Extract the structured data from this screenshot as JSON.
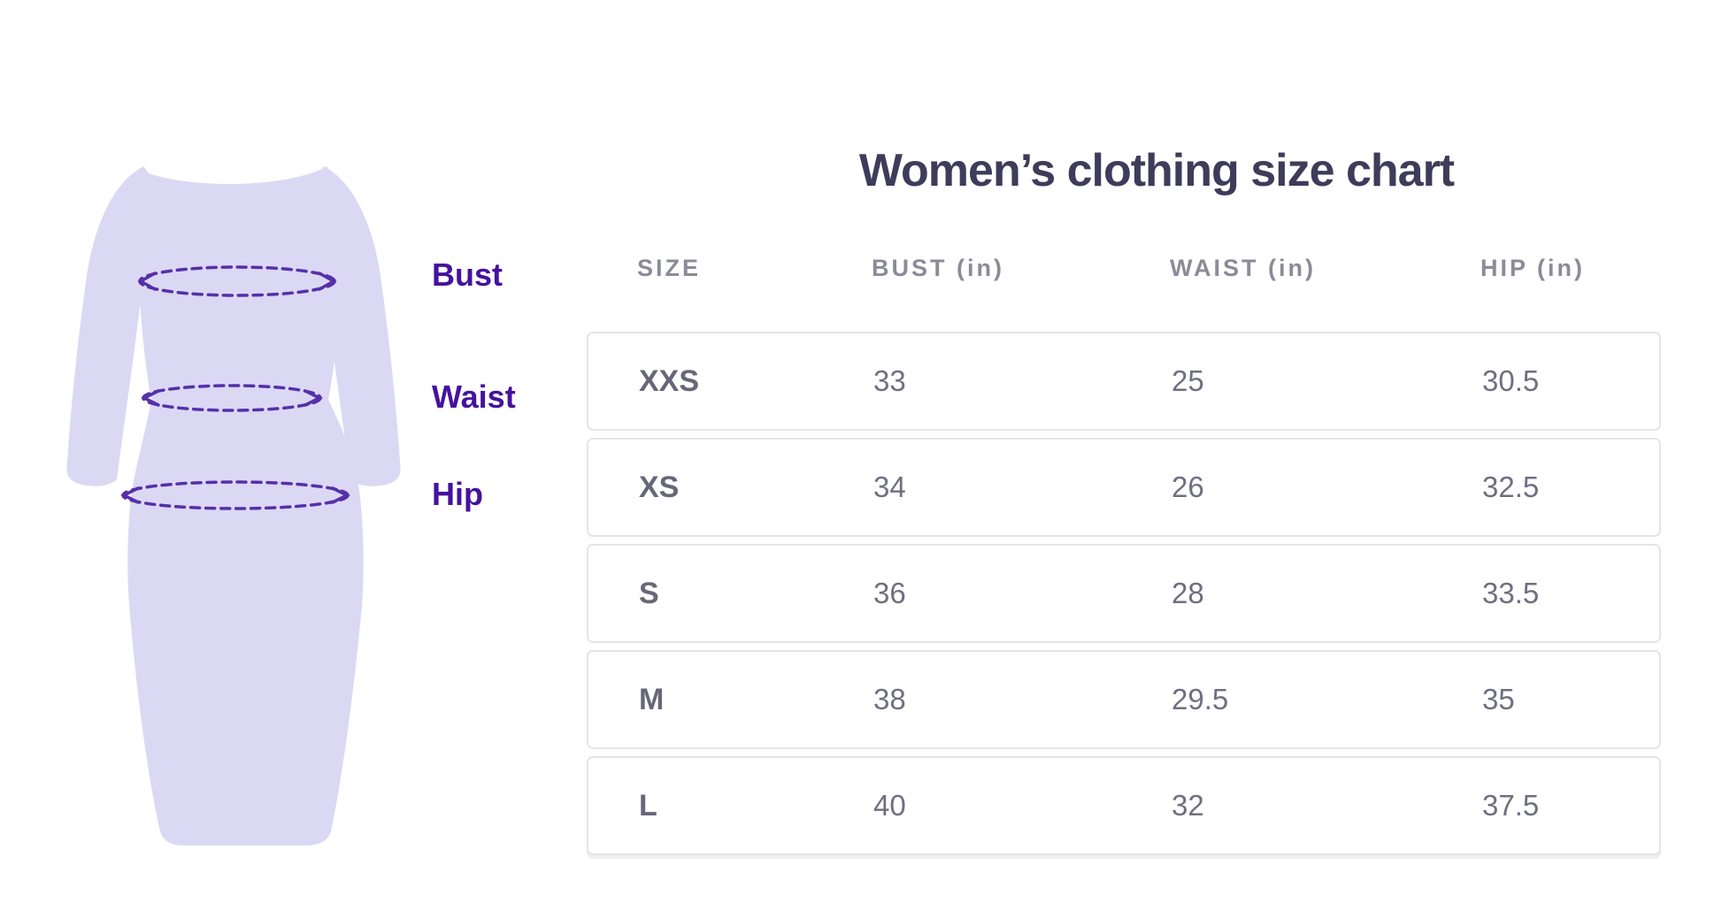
{
  "title": "Women’s clothing size chart",
  "figure": {
    "description": "dress silhouette with dashed measurement ellipses",
    "labels": {
      "bust": "Bust",
      "waist": "Waist",
      "hip": "Hip"
    }
  },
  "table": {
    "headers": [
      "SIZE",
      "BUST (in)",
      "WAIST (in)",
      "HIP (in)"
    ],
    "rows": [
      {
        "size": "XXS",
        "bust": "33",
        "waist": "25",
        "hip": "30.5"
      },
      {
        "size": "XS",
        "bust": "34",
        "waist": "26",
        "hip": "32.5"
      },
      {
        "size": "S",
        "bust": "36",
        "waist": "28",
        "hip": "33.5"
      },
      {
        "size": "M",
        "bust": "38",
        "waist": "29.5",
        "hip": "35"
      },
      {
        "size": "L",
        "bust": "40",
        "waist": "32",
        "hip": "37.5"
      }
    ]
  },
  "colors": {
    "page_bg": "#ffffff",
    "title_color": "#3e3c5a",
    "label_purple": "#45129e",
    "dash_purple": "#5530aa",
    "dress_fill": "#dbd8f4",
    "header_grey": "#8b8b98",
    "row_border": "#e5e5e9",
    "size_text": "#67677a",
    "number_text": "#6f6f80"
  },
  "chart_data": {
    "type": "table",
    "title": "Women’s clothing size chart",
    "columns": [
      "SIZE",
      "BUST (in)",
      "WAIST (in)",
      "HIP (in)"
    ],
    "rows": [
      [
        "XXS",
        33,
        25,
        30.5
      ],
      [
        "XS",
        34,
        26,
        32.5
      ],
      [
        "S",
        36,
        28,
        33.5
      ],
      [
        "M",
        38,
        29.5,
        35
      ],
      [
        "L",
        40,
        32,
        37.5
      ]
    ]
  }
}
